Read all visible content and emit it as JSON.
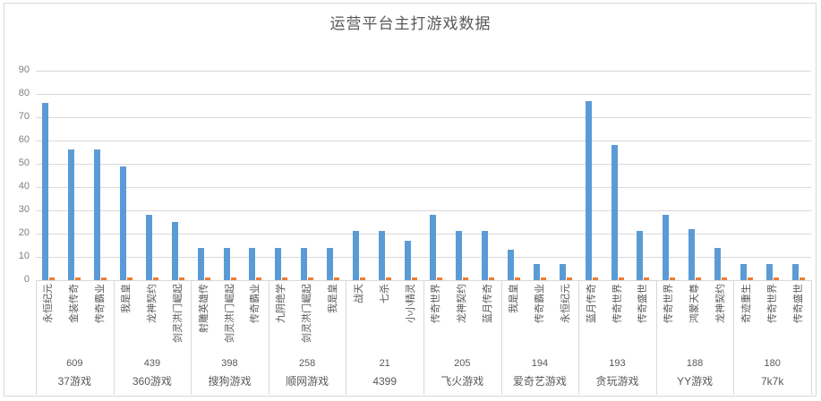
{
  "title": "运营平台主打游戏数据",
  "colors": {
    "primary_bar": "#5b9bd5",
    "secondary_bar": "#ed7d31",
    "gridline": "#d9d9d9",
    "axis_text": "#7f7f7f",
    "label_text": "#595959"
  },
  "chart_data": {
    "type": "bar",
    "title": "运营平台主打游戏数据",
    "ylabel": "",
    "xlabel": "",
    "ylim": [
      0,
      90
    ],
    "yticks": [
      0,
      10,
      20,
      30,
      40,
      50,
      60,
      70,
      80,
      90
    ],
    "grid": true,
    "legend": "none",
    "series_note": "每个游戏有一条蓝色主数据柱和一条贴近0的橙色小柱",
    "groups": [
      {
        "platform": "37游戏",
        "total": "609",
        "games": [
          "永恒纪元",
          "金装传奇",
          "传奇霸业"
        ],
        "values": [
          76,
          56,
          56
        ],
        "secondary_values": [
          1,
          1,
          1
        ]
      },
      {
        "platform": "360游戏",
        "total": "439",
        "games": [
          "我是皇",
          "龙神契约",
          "剑灵洪门崛起"
        ],
        "values": [
          49,
          28,
          25
        ],
        "secondary_values": [
          1,
          1,
          1
        ]
      },
      {
        "platform": "搜狗游戏",
        "total": "398",
        "games": [
          "射雕英雄传",
          "剑灵洪门崛起",
          "传奇霸业"
        ],
        "values": [
          14,
          14,
          14
        ],
        "secondary_values": [
          1,
          1,
          1
        ]
      },
      {
        "platform": "顺网游戏",
        "total": "258",
        "games": [
          "九阴绝学",
          "剑灵洪门崛起",
          "我是皇"
        ],
        "values": [
          14,
          14,
          14
        ],
        "secondary_values": [
          1,
          1,
          1
        ]
      },
      {
        "platform": "4399",
        "total": "21",
        "games": [
          "战天",
          "七杀",
          "小小精灵"
        ],
        "values": [
          21,
          21,
          17
        ],
        "secondary_values": [
          1,
          1,
          1
        ]
      },
      {
        "platform": "飞火游戏",
        "total": "205",
        "games": [
          "传奇世界",
          "龙神契约",
          "蓝月传奇"
        ],
        "values": [
          28,
          21,
          21
        ],
        "secondary_values": [
          1,
          1,
          1
        ]
      },
      {
        "platform": "爱奇艺游戏",
        "total": "194",
        "games": [
          "我是皇",
          "传奇霸业",
          "永恒纪元"
        ],
        "values": [
          13,
          7,
          7
        ],
        "secondary_values": [
          1,
          1,
          1
        ]
      },
      {
        "platform": "贪玩游戏",
        "total": "193",
        "games": [
          "蓝月传奇",
          "传奇世界",
          "传奇盛世"
        ],
        "values": [
          77,
          58,
          21
        ],
        "secondary_values": [
          1,
          1,
          1
        ]
      },
      {
        "platform": "YY游戏",
        "total": "188",
        "games": [
          "传奇世界",
          "鸿蒙天尊",
          "龙神契约"
        ],
        "values": [
          28,
          22,
          14
        ],
        "secondary_values": [
          1,
          1,
          1
        ]
      },
      {
        "platform": "7k7k",
        "total": "180",
        "games": [
          "奇迹重生",
          "传奇世界",
          "传奇盛世"
        ],
        "values": [
          7,
          7,
          7
        ],
        "secondary_values": [
          1,
          1,
          1
        ]
      }
    ]
  }
}
